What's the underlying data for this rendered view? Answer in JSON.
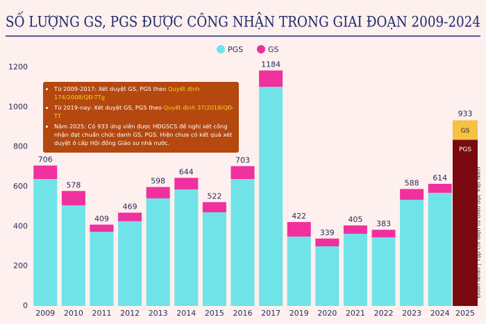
{
  "chart_data": {
    "type": "stacked-bar",
    "title": "SỐ LƯỢNG GS, PGS ĐƯỢC CÔNG NHẬN TRONG GIAI ĐOẠN 2009-2024",
    "categories": [
      "2009",
      "2010",
      "2011",
      "2012",
      "2013",
      "2014",
      "2015",
      "2016",
      "2017",
      "2019",
      "2020",
      "2021",
      "2022",
      "2023",
      "2024"
    ],
    "series": [
      {
        "name": "PGS",
        "color": "#6fe3e8",
        "values": [
          638,
          506,
          373,
          426,
          541,
          586,
          471,
          638,
          1102,
          349,
          300,
          363,
          345,
          534,
          569
        ]
      },
      {
        "name": "GS",
        "color": "#f0309e",
        "values": [
          68,
          72,
          36,
          43,
          57,
          58,
          51,
          65,
          82,
          73,
          39,
          42,
          38,
          54,
          45
        ]
      }
    ],
    "totals": [
      706,
      578,
      409,
      469,
      598,
      644,
      522,
      703,
      1184,
      422,
      339,
      405,
      383,
      588,
      614
    ],
    "ylim": [
      0,
      1200
    ],
    "yticks": [
      0,
      200,
      400,
      600,
      800,
      1000,
      1200
    ],
    "grid": false,
    "legend": "top",
    "extra_bar": {
      "category": "2025",
      "total": 933,
      "labels": [
        "GS",
        "PGS"
      ],
      "colors": [
        "#f5c242",
        "#7a0a0f"
      ]
    },
    "notes": [
      {
        "text": "Từ 2009-2017: Xét duyệt GS, PGS theo ",
        "highlight": "Quyết định 174/2008/QĐ-TTg"
      },
      {
        "text": "Từ 2019-nay: Xét duyệt GS, PGS theo ",
        "highlight": "Quyết định 37/2018/QĐ-TT"
      },
      {
        "text": "Năm 2025: Có 933 ứng viên được HĐGSCS đề nghị xét công nhận đạt chuẩn chức danh GS, PGS. Hiện chưa có kết quả xét duyệt ở cấp Hội đồng Giáo sư nhà nước."
      }
    ],
    "credit": "Đoàn Nhân | Tạp chí điện tử Giáo dục Việt Nam"
  }
}
